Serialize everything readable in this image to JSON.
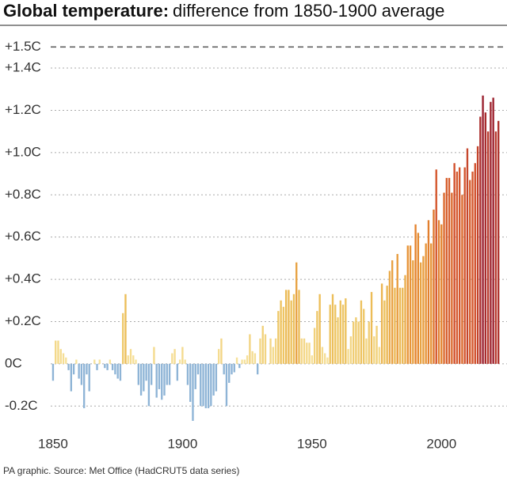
{
  "chart_data": {
    "type": "bar",
    "title_bold": "Global temperature:",
    "title_rest": "difference from 1850-1900 average",
    "source": "PA graphic. Source: Met Office (HadCRUT5 data series)",
    "x": [
      1850,
      1851,
      1852,
      1853,
      1854,
      1855,
      1856,
      1857,
      1858,
      1859,
      1860,
      1861,
      1862,
      1863,
      1864,
      1865,
      1866,
      1867,
      1868,
      1869,
      1870,
      1871,
      1872,
      1873,
      1874,
      1875,
      1876,
      1877,
      1878,
      1879,
      1880,
      1881,
      1882,
      1883,
      1884,
      1885,
      1886,
      1887,
      1888,
      1889,
      1890,
      1891,
      1892,
      1893,
      1894,
      1895,
      1896,
      1897,
      1898,
      1899,
      1900,
      1901,
      1902,
      1903,
      1904,
      1905,
      1906,
      1907,
      1908,
      1909,
      1910,
      1911,
      1912,
      1913,
      1914,
      1915,
      1916,
      1917,
      1918,
      1919,
      1920,
      1921,
      1922,
      1923,
      1924,
      1925,
      1926,
      1927,
      1928,
      1929,
      1930,
      1931,
      1932,
      1933,
      1934,
      1935,
      1936,
      1937,
      1938,
      1939,
      1940,
      1941,
      1942,
      1943,
      1944,
      1945,
      1946,
      1947,
      1948,
      1949,
      1950,
      1951,
      1952,
      1953,
      1954,
      1955,
      1956,
      1957,
      1958,
      1959,
      1960,
      1961,
      1962,
      1963,
      1964,
      1965,
      1966,
      1967,
      1968,
      1969,
      1970,
      1971,
      1972,
      1973,
      1974,
      1975,
      1976,
      1977,
      1978,
      1979,
      1980,
      1981,
      1982,
      1983,
      1984,
      1985,
      1986,
      1987,
      1988,
      1989,
      1990,
      1991,
      1992,
      1993,
      1994,
      1995,
      1996,
      1997,
      1998,
      1999,
      2000,
      2001,
      2002,
      2003,
      2004,
      2005,
      2006,
      2007,
      2008,
      2009,
      2010,
      2011,
      2012,
      2013,
      2014,
      2015,
      2016,
      2017,
      2018,
      2019,
      2020,
      2021,
      2022
    ],
    "values": [
      -0.08,
      0.11,
      0.11,
      0.07,
      0.05,
      0.03,
      -0.03,
      -0.13,
      -0.05,
      0.02,
      -0.07,
      -0.1,
      -0.21,
      -0.05,
      -0.13,
      0.0,
      0.02,
      -0.03,
      0.02,
      0.0,
      -0.02,
      -0.03,
      0.02,
      -0.03,
      -0.05,
      -0.07,
      -0.08,
      0.24,
      0.33,
      0.04,
      0.07,
      0.04,
      0.02,
      -0.1,
      -0.15,
      -0.13,
      -0.08,
      -0.2,
      -0.1,
      0.08,
      -0.16,
      -0.12,
      -0.17,
      -0.15,
      -0.1,
      -0.1,
      0.05,
      0.07,
      -0.08,
      0.02,
      0.08,
      0.02,
      -0.1,
      -0.18,
      -0.27,
      -0.12,
      -0.05,
      -0.2,
      -0.2,
      -0.21,
      -0.21,
      -0.2,
      -0.15,
      -0.13,
      0.07,
      0.12,
      -0.05,
      -0.2,
      -0.09,
      -0.05,
      -0.04,
      0.03,
      -0.02,
      0.02,
      0.02,
      0.04,
      0.14,
      0.06,
      0.05,
      -0.05,
      0.12,
      0.18,
      0.14,
      0.0,
      0.12,
      0.08,
      0.12,
      0.25,
      0.3,
      0.27,
      0.35,
      0.35,
      0.3,
      0.33,
      0.48,
      0.35,
      0.12,
      0.12,
      0.1,
      0.1,
      0.04,
      0.17,
      0.25,
      0.33,
      0.08,
      0.05,
      0.03,
      0.28,
      0.33,
      0.28,
      0.22,
      0.3,
      0.28,
      0.31,
      0.07,
      0.13,
      0.2,
      0.22,
      0.2,
      0.3,
      0.26,
      0.12,
      0.2,
      0.34,
      0.13,
      0.18,
      0.08,
      0.38,
      0.3,
      0.37,
      0.44,
      0.49,
      0.36,
      0.52,
      0.36,
      0.36,
      0.42,
      0.56,
      0.56,
      0.49,
      0.66,
      0.62,
      0.48,
      0.51,
      0.57,
      0.68,
      0.57,
      0.73,
      0.92,
      0.68,
      0.66,
      0.81,
      0.88,
      0.88,
      0.81,
      0.95,
      0.91,
      0.93,
      0.8,
      0.93,
      1.02,
      0.87,
      0.91,
      0.95,
      1.03,
      1.17,
      1.27,
      1.19,
      1.1,
      1.24,
      1.26,
      1.1,
      1.15
    ],
    "negative_color": "#8eb4d6",
    "positive_colors": [
      "#f7e4a0",
      "#ecc05a",
      "#e5872e",
      "#d2502c",
      "#9a1f2e"
    ],
    "xlim": [
      1845,
      2025
    ],
    "xticks": [
      1850,
      1900,
      1950,
      2000
    ],
    "ylim": [
      -0.3,
      1.55
    ],
    "yticks": [
      {
        "value": -0.2,
        "label": "-0.2C"
      },
      {
        "value": 0,
        "label": "0C"
      },
      {
        "value": 0.2,
        "label": "+0.2C"
      },
      {
        "value": 0.4,
        "label": "+0.4C"
      },
      {
        "value": 0.6,
        "label": "+0.6C"
      },
      {
        "value": 0.8,
        "label": "+0.8C"
      },
      {
        "value": 1.0,
        "label": "+1.0C"
      },
      {
        "value": 1.2,
        "label": "+1.2C"
      },
      {
        "value": 1.4,
        "label": "+1.4C"
      }
    ],
    "reference_line": {
      "value": 1.5,
      "label": "+1.5C"
    },
    "grid": true
  }
}
